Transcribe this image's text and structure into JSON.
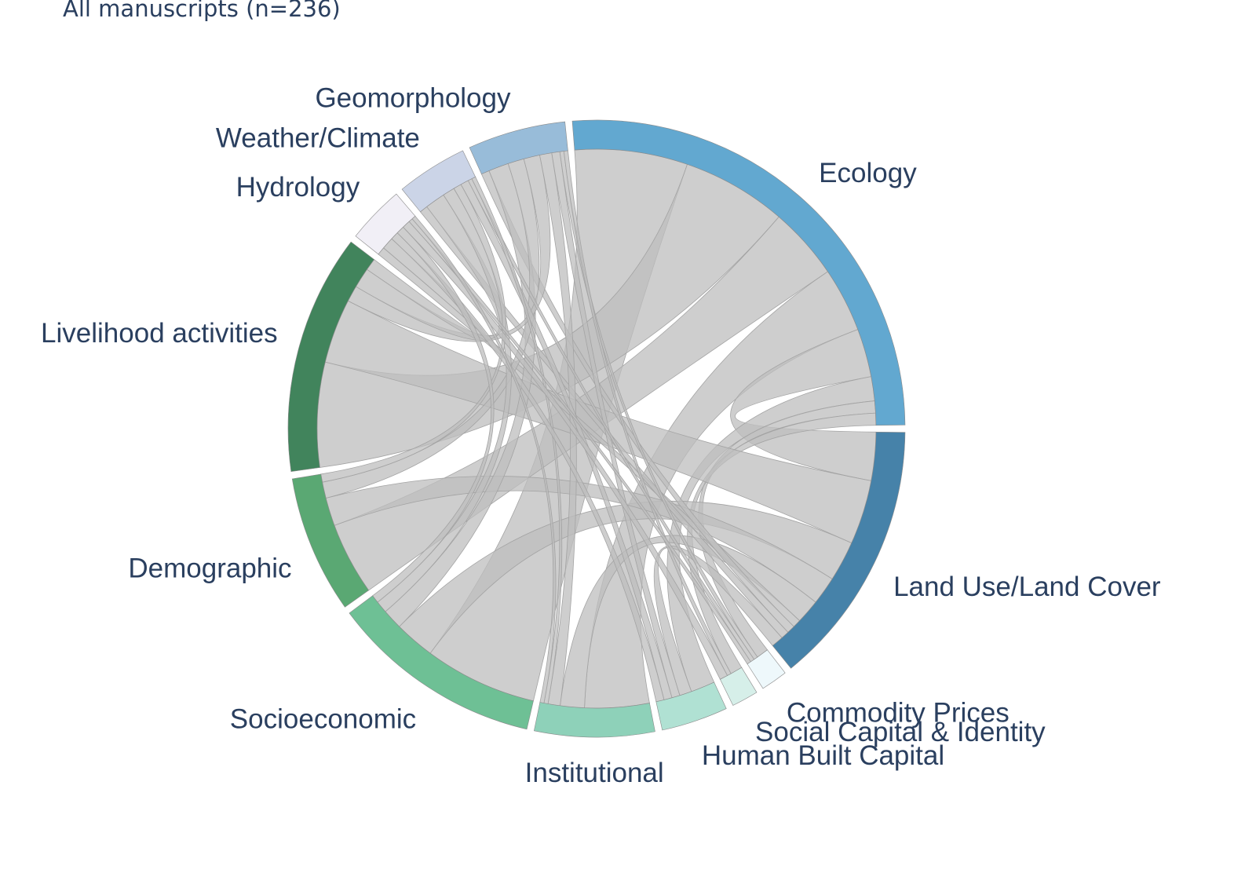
{
  "title": "All manuscripts (n=236)",
  "chart_data": {
    "type": "chord",
    "title": "All manuscripts (n=236)",
    "groups": [
      {
        "name": "Land Use/Land Cover",
        "color": "#4682a9"
      },
      {
        "name": "Commodity Prices",
        "color": "#eef8fb"
      },
      {
        "name": "Social Capital & Identity",
        "color": "#d6efe9"
      },
      {
        "name": "Human Built Capital",
        "color": "#b0e1d3"
      },
      {
        "name": "Institutional",
        "color": "#8ed1b9"
      },
      {
        "name": "Socioeconomic",
        "color": "#6ec095"
      },
      {
        "name": "Demographic",
        "color": "#5aa873"
      },
      {
        "name": "Livelihood activities",
        "color": "#41845c"
      },
      {
        "name": "Hydrology",
        "color": "#f1eff6"
      },
      {
        "name": "Weather/Climate",
        "color": "#cbd4e7"
      },
      {
        "name": "Geomorphology",
        "color": "#98bcd9"
      },
      {
        "name": "Ecology",
        "color": "#62a8d0"
      }
    ],
    "links": [
      {
        "source": "Ecology",
        "target": "Socioeconomic",
        "value": 28
      },
      {
        "source": "Ecology",
        "target": "Livelihood activities",
        "value": 26
      },
      {
        "source": "Ecology",
        "target": "Demographic",
        "value": 18
      },
      {
        "source": "Ecology",
        "target": "Institutional",
        "value": 16
      },
      {
        "source": "Ecology",
        "target": "Land Use/Land Cover",
        "value": 12
      },
      {
        "source": "Ecology",
        "target": "Human Built Capital",
        "value": 6
      },
      {
        "source": "Ecology",
        "target": "Commodity Prices",
        "value": 3
      },
      {
        "source": "Ecology",
        "target": "Social Capital & Identity",
        "value": 3
      },
      {
        "source": "Land Use/Land Cover",
        "target": "Livelihood activities",
        "value": 16
      },
      {
        "source": "Land Use/Land Cover",
        "target": "Socioeconomic",
        "value": 10
      },
      {
        "source": "Land Use/Land Cover",
        "target": "Demographic",
        "value": 7
      },
      {
        "source": "Land Use/Land Cover",
        "target": "Institutional",
        "value": 6
      },
      {
        "source": "Land Use/Land Cover",
        "target": "Hydrology",
        "value": 2
      },
      {
        "source": "Land Use/Land Cover",
        "target": "Geomorphology",
        "value": 2
      },
      {
        "source": "Land Use/Land Cover",
        "target": "Weather/Climate",
        "value": 2
      },
      {
        "source": "Land Use/Land Cover",
        "target": "Human Built Capital",
        "value": 3
      },
      {
        "source": "Geomorphology",
        "target": "Socioeconomic",
        "value": 5
      },
      {
        "source": "Geomorphology",
        "target": "Demographic",
        "value": 4
      },
      {
        "source": "Geomorphology",
        "target": "Livelihood activities",
        "value": 4
      },
      {
        "source": "Geomorphology",
        "target": "Institutional",
        "value": 3
      },
      {
        "source": "Geomorphology",
        "target": "Human Built Capital",
        "value": 2
      },
      {
        "source": "Geomorphology",
        "target": "Commodity Prices",
        "value": 1
      },
      {
        "source": "Geomorphology",
        "target": "Social Capital & Identity",
        "value": 1
      },
      {
        "source": "Weather/Climate",
        "target": "Livelihood activities",
        "value": 5
      },
      {
        "source": "Weather/Climate",
        "target": "Socioeconomic",
        "value": 3
      },
      {
        "source": "Weather/Climate",
        "target": "Demographic",
        "value": 2
      },
      {
        "source": "Weather/Climate",
        "target": "Human Built Capital",
        "value": 2
      },
      {
        "source": "Weather/Climate",
        "target": "Commodity Prices",
        "value": 1
      },
      {
        "source": "Weather/Climate",
        "target": "Institutional",
        "value": 1
      },
      {
        "source": "Hydrology",
        "target": "Livelihood activities",
        "value": 3
      },
      {
        "source": "Hydrology",
        "target": "Human Built Capital",
        "value": 2
      },
      {
        "source": "Hydrology",
        "target": "Socioeconomic",
        "value": 2
      },
      {
        "source": "Hydrology",
        "target": "Social Capital & Identity",
        "value": 2
      },
      {
        "source": "Hydrology",
        "target": "Commodity Prices",
        "value": 1
      },
      {
        "source": "Hydrology",
        "target": "Institutional",
        "value": 1
      }
    ]
  }
}
